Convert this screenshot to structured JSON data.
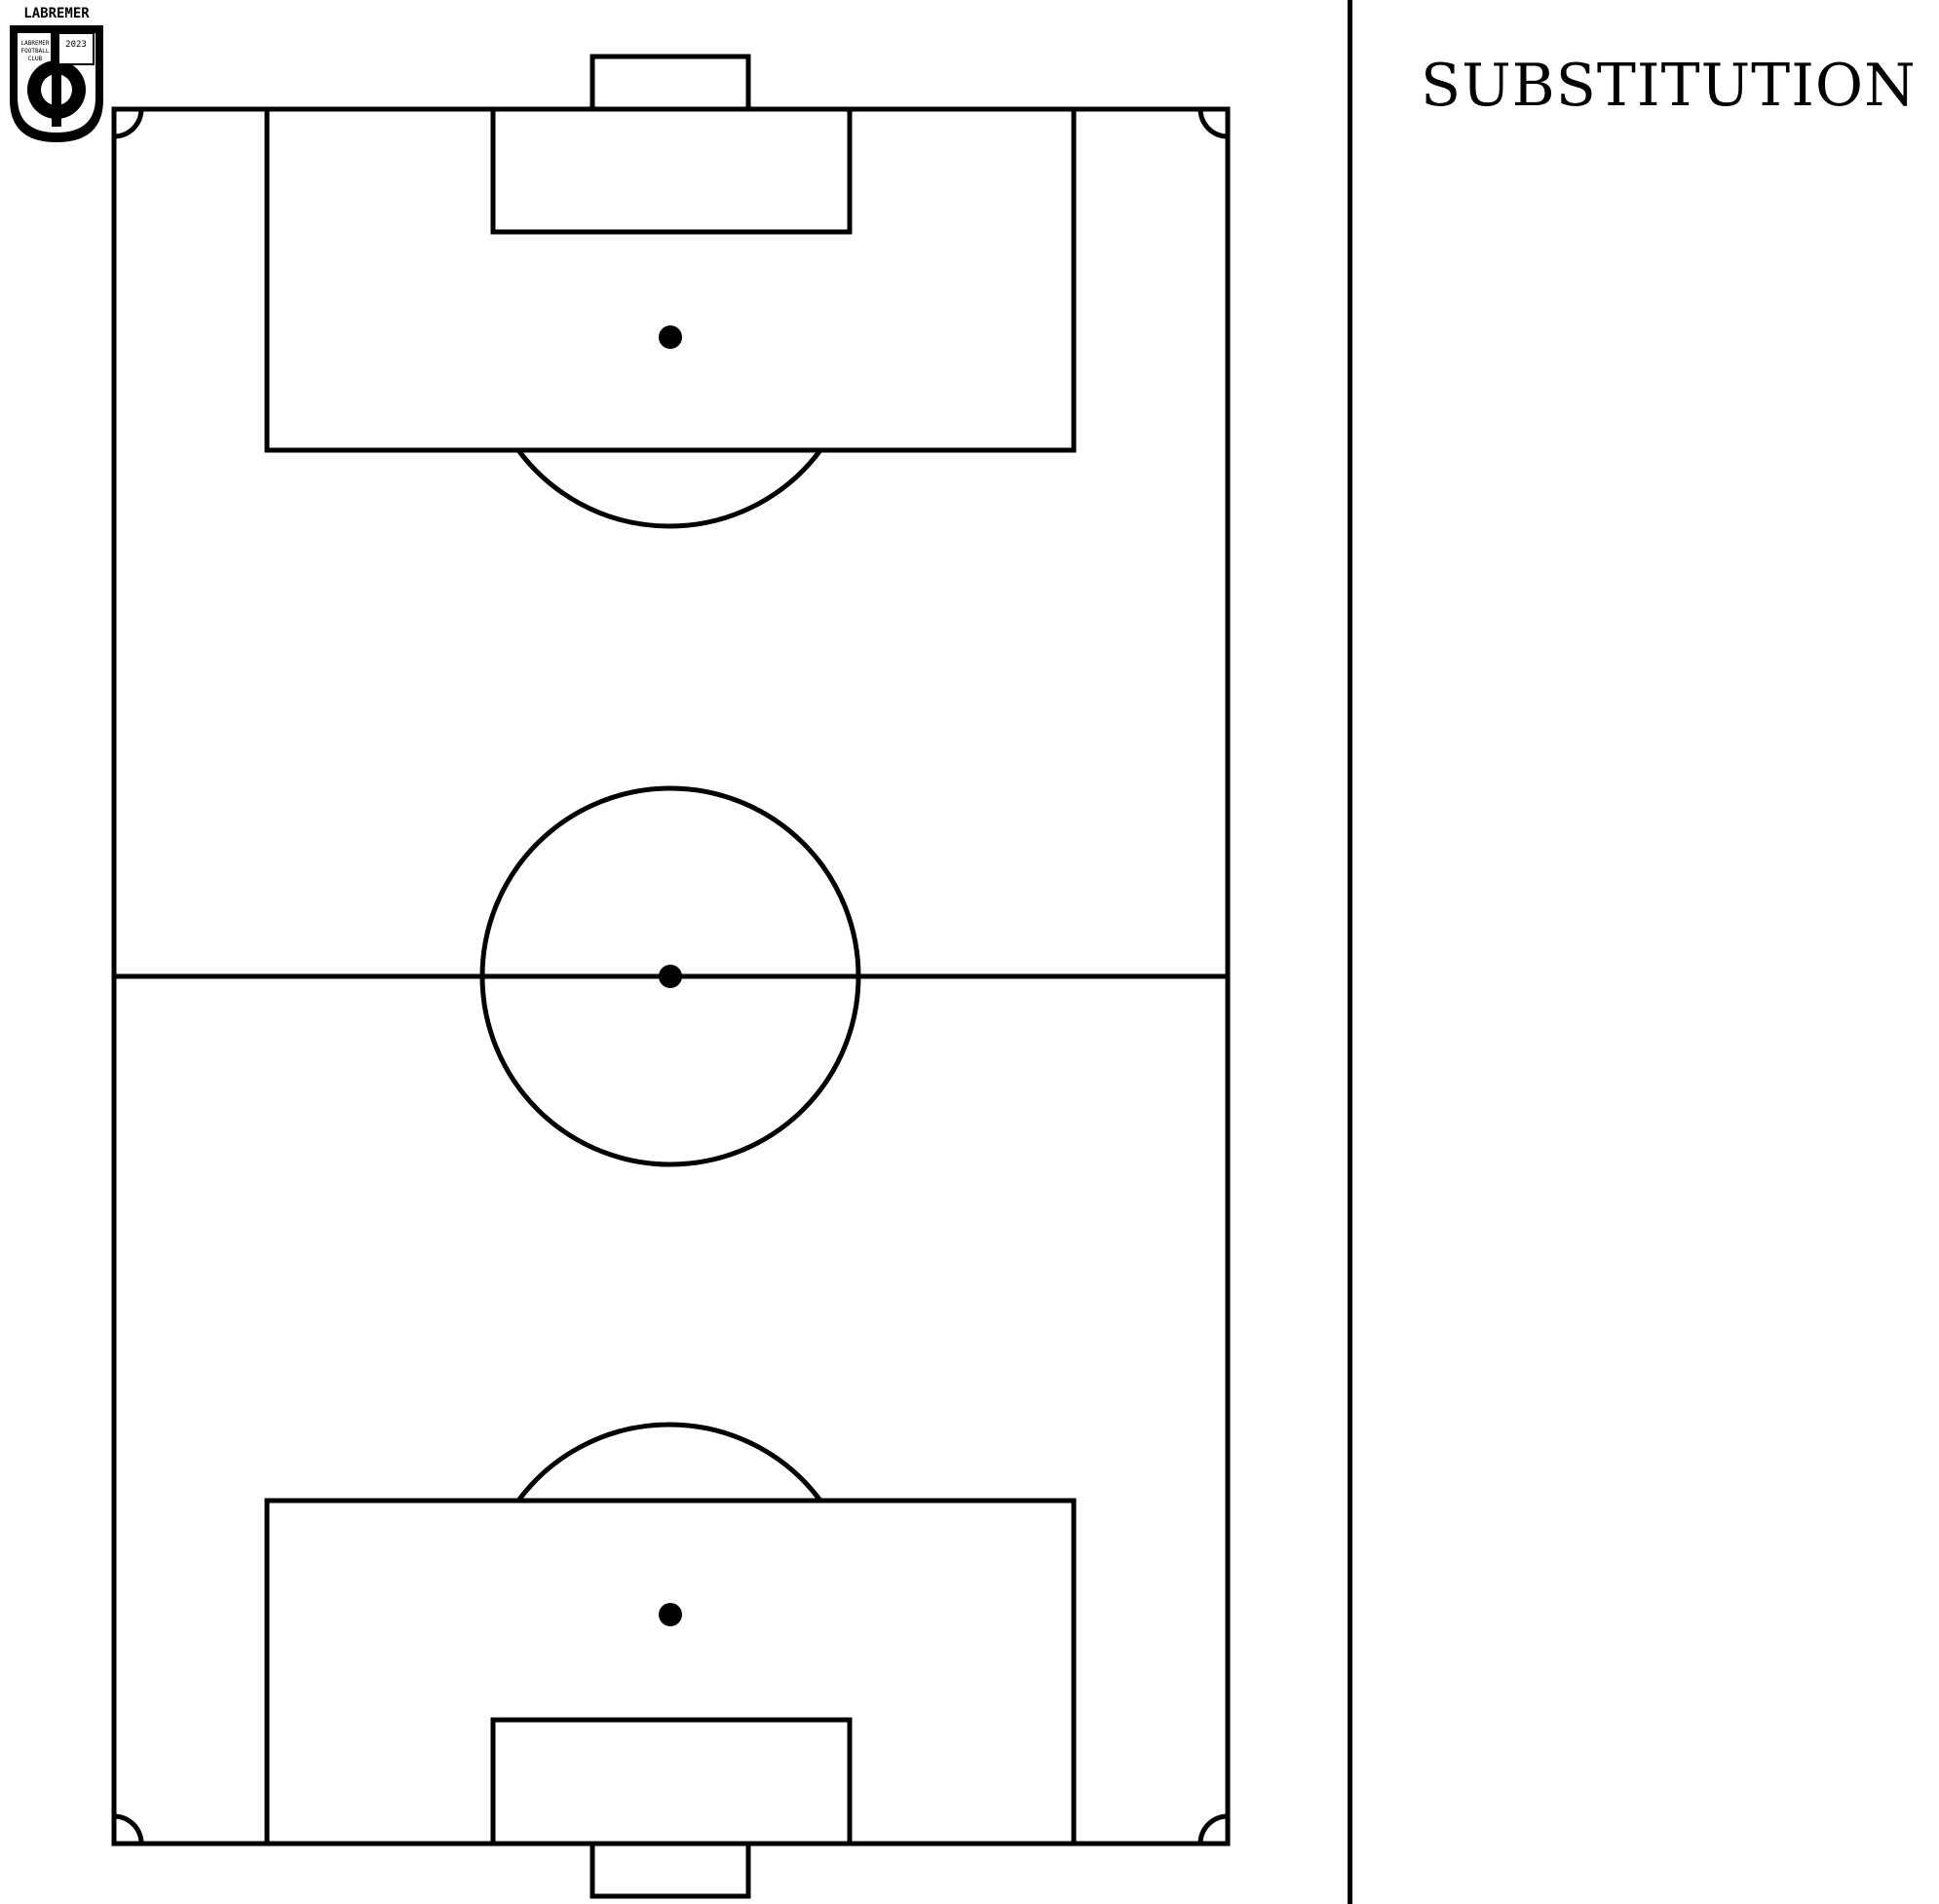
{
  "logo": {
    "brand_name": "LABREMER",
    "sub_text": "LABREMER FOOTBALL CLUB",
    "year": "2023"
  },
  "substitution": {
    "title": "SUBSTITUTION"
  },
  "pitch": {
    "line_color": "#000000",
    "background_color": "#ffffff",
    "orientation": "vertical"
  }
}
